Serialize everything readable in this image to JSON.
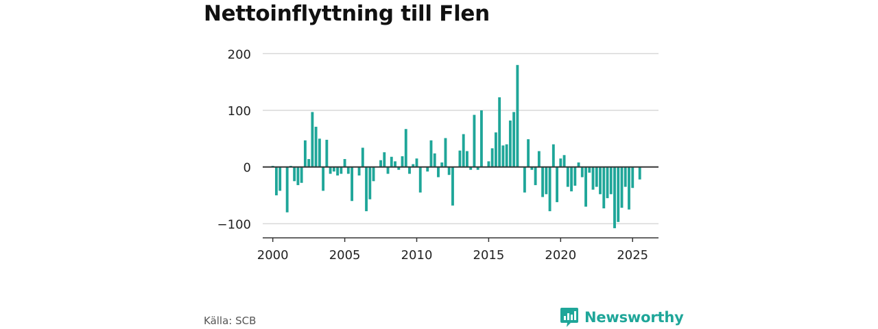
{
  "title": "Nettoinflyttning till Flen",
  "source": "Källa: SCB",
  "brand": {
    "name": "Newsworthy",
    "color": "#1fa699"
  },
  "colors": {
    "bar": "#1fa699",
    "grid": "#d9d9d9",
    "axis": "#333333",
    "zero_line": "#333333"
  },
  "chart_data": {
    "type": "bar",
    "title": "Nettoinflyttning till Flen",
    "xlabel": "",
    "ylabel": "",
    "x_ticks": [
      2000,
      2005,
      2010,
      2015,
      2020,
      2025
    ],
    "y_ticks": [
      -100,
      0,
      100,
      200
    ],
    "y_tick_labels": [
      "−100",
      "0",
      "100",
      "200"
    ],
    "xlim": [
      1999.3,
      2026.8
    ],
    "ylim": [
      -125,
      210
    ],
    "grid": true,
    "bar_frequency": "quarterly",
    "first_period": 2000.0,
    "values": [
      2,
      -50,
      -42,
      0,
      -80,
      2,
      -25,
      -32,
      -28,
      47,
      14,
      97,
      71,
      50,
      -42,
      48,
      -12,
      -8,
      -15,
      -12,
      14,
      -12,
      -60,
      0,
      -15,
      34,
      -78,
      -57,
      -25,
      0,
      12,
      26,
      -12,
      18,
      10,
      -5,
      19,
      67,
      -12,
      5,
      15,
      -45,
      0,
      -8,
      47,
      24,
      -18,
      8,
      51,
      -14,
      -68,
      0,
      29,
      58,
      28,
      -5,
      92,
      -5,
      100,
      0,
      10,
      33,
      61,
      123,
      38,
      40,
      82,
      97,
      180,
      0,
      -45,
      49,
      -5,
      -32,
      28,
      -53,
      -48,
      -78,
      40,
      -62,
      15,
      21,
      -35,
      -43,
      -33,
      8,
      -18,
      -70,
      -10,
      -40,
      -35,
      -48,
      -73,
      -55,
      -48,
      -108,
      -97,
      -72,
      -35,
      -75,
      -37,
      0,
      -22
    ]
  }
}
